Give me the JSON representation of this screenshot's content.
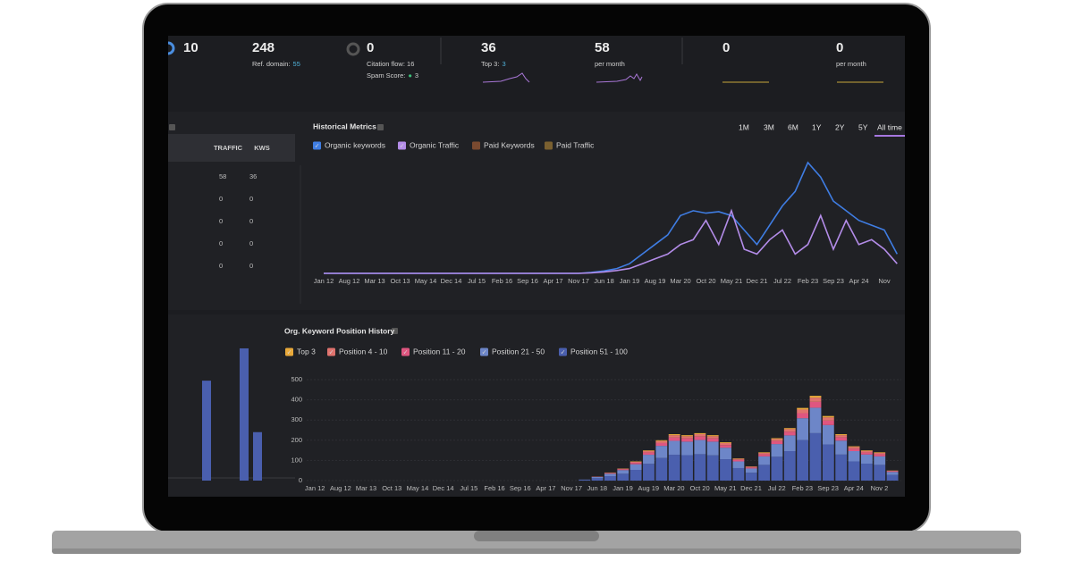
{
  "metrics": [
    {
      "value": 10
    },
    {
      "value": 248,
      "label": "Ref. domain:",
      "detail": 55
    },
    {
      "value": 0,
      "label": "Citation flow: 16",
      "label2": "Spam Score:",
      "detail": 3
    },
    {
      "value": 36,
      "label": "Top 3:",
      "detail": 3
    },
    {
      "value": 58,
      "label": "per month"
    },
    {
      "value": 0
    },
    {
      "value": 0,
      "label": "per month"
    }
  ],
  "keyword_table": {
    "headers": [
      "TRAFFIC",
      "KWS"
    ],
    "rows": [
      [
        58,
        36
      ],
      [
        0,
        0
      ],
      [
        0,
        0
      ],
      [
        0,
        0
      ],
      [
        0,
        0
      ]
    ]
  },
  "timeframes": [
    "1M",
    "3M",
    "6M",
    "1Y",
    "2Y",
    "5Y",
    "All time"
  ],
  "active_timeframe": "All time",
  "historical_metrics": {
    "type": "line",
    "title": "Historical Metrics",
    "categories": [
      "Jan 12",
      null,
      "Aug 12",
      null,
      "Mar 13",
      null,
      "Oct 13",
      null,
      "May 14",
      null,
      "Dec 14",
      null,
      "Jul 15",
      null,
      "Feb 16",
      null,
      "Sep 16",
      null,
      "Apr 17",
      null,
      "Nov 17",
      null,
      "Jun 18",
      null,
      "Jan 19",
      null,
      "Aug 19",
      null,
      "Mar 20",
      null,
      "Oct 20",
      null,
      "May 21",
      null,
      "Dec 21",
      null,
      "Jul 22",
      null,
      "Feb 23",
      null,
      "Sep 23",
      null,
      "Apr 24",
      null,
      "Nov",
      null
    ],
    "series": [
      {
        "name": "Organic keywords",
        "color": "#3f7de3",
        "values": [
          0,
          0,
          0,
          0,
          0,
          0,
          0,
          0,
          0,
          0,
          0,
          0,
          0,
          0,
          0,
          0,
          0,
          0,
          0,
          0,
          0,
          2,
          5,
          10,
          20,
          40,
          60,
          80,
          120,
          130,
          125,
          128,
          120,
          90,
          60,
          100,
          140,
          170,
          230,
          200,
          150,
          130,
          110,
          100,
          90,
          40
        ]
      },
      {
        "name": "Organic Traffic",
        "color": "#b38ce8",
        "values": [
          0,
          0,
          0,
          0,
          0,
          0,
          0,
          0,
          0,
          0,
          0,
          0,
          0,
          0,
          0,
          0,
          0,
          0,
          0,
          0,
          0,
          1,
          3,
          6,
          10,
          20,
          30,
          40,
          60,
          70,
          110,
          60,
          130,
          50,
          40,
          70,
          90,
          40,
          60,
          120,
          50,
          110,
          60,
          70,
          50,
          20
        ]
      }
    ],
    "inactive_series": [
      {
        "name": "Paid Keywords",
        "color": "#7a4a30"
      },
      {
        "name": "Paid Traffic",
        "color": "#7a6030"
      }
    ]
  },
  "position_history": {
    "type": "bar",
    "stacked": true,
    "title": "Org. Keyword Position History",
    "categories": [
      "Jan 12",
      null,
      "Aug 12",
      null,
      "Mar 13",
      null,
      "Oct 13",
      null,
      "May 14",
      null,
      "Dec 14",
      null,
      "Jul 15",
      null,
      "Feb 16",
      null,
      "Sep 16",
      null,
      "Apr 17",
      null,
      "Nov 17",
      null,
      "Jun 18",
      null,
      "Jan 19",
      null,
      "Aug 19",
      null,
      "Mar 20",
      null,
      "Oct 20",
      null,
      "May 21",
      null,
      "Dec 21",
      null,
      "Jul 22",
      null,
      "Feb 23",
      null,
      "Sep 23",
      null,
      "Apr 24",
      null,
      "Nov 2",
      null
    ],
    "ylim": [
      0,
      500
    ],
    "yticks": [
      0,
      100,
      200,
      300,
      400,
      500
    ],
    "series": [
      {
        "name": "Top 3",
        "color": "#e8a93a",
        "values": [
          0,
          0,
          0,
          0,
          0,
          0,
          0,
          0,
          0,
          0,
          0,
          0,
          0,
          0,
          0,
          0,
          0,
          0,
          0,
          0,
          0,
          0,
          0,
          1,
          1,
          2,
          3,
          4,
          5,
          5,
          5,
          5,
          4,
          2,
          1,
          3,
          4,
          5,
          8,
          9,
          7,
          5,
          3,
          3,
          3,
          1
        ]
      },
      {
        "name": "Position 4 - 10",
        "color": "#e0736e",
        "values": [
          0,
          0,
          0,
          0,
          0,
          0,
          0,
          0,
          0,
          0,
          0,
          0,
          0,
          0,
          0,
          0,
          0,
          0,
          0,
          0,
          0,
          0,
          1,
          2,
          3,
          5,
          8,
          10,
          12,
          11,
          12,
          11,
          10,
          5,
          4,
          7,
          10,
          13,
          18,
          21,
          16,
          11,
          9,
          8,
          7,
          3
        ]
      },
      {
        "name": "Position 11 - 20",
        "color": "#df5680",
        "values": [
          0,
          0,
          0,
          0,
          0,
          0,
          0,
          0,
          0,
          0,
          0,
          0,
          0,
          0,
          0,
          0,
          0,
          0,
          0,
          0,
          0,
          0,
          1,
          3,
          4,
          7,
          11,
          14,
          16,
          16,
          17,
          16,
          13,
          8,
          5,
          10,
          15,
          18,
          25,
          29,
          22,
          16,
          12,
          10,
          10,
          3
        ]
      },
      {
        "name": "Position 21 - 50",
        "color": "#6d86c8",
        "values": [
          0,
          0,
          0,
          0,
          0,
          0,
          0,
          0,
          0,
          0,
          0,
          0,
          0,
          0,
          0,
          0,
          0,
          0,
          0,
          0,
          0,
          1,
          6,
          12,
          18,
          28,
          45,
          60,
          69,
          67,
          70,
          68,
          57,
          33,
          21,
          42,
          63,
          78,
          108,
          126,
          96,
          69,
          51,
          45,
          42,
          15
        ]
      },
      {
        "name": "Position 51 - 100",
        "color": "#4a5fae",
        "values": [
          0,
          0,
          0,
          0,
          0,
          0,
          0,
          0,
          0,
          0,
          0,
          0,
          0,
          0,
          0,
          0,
          0,
          0,
          0,
          0,
          0,
          4,
          12,
          22,
          34,
          53,
          83,
          112,
          128,
          126,
          131,
          125,
          106,
          62,
          39,
          78,
          118,
          146,
          201,
          235,
          179,
          129,
          95,
          84,
          78,
          28
        ]
      }
    ]
  },
  "side_bars": {
    "type": "bar",
    "values": [
      495,
      655,
      240
    ],
    "color": "#4a5fae"
  }
}
